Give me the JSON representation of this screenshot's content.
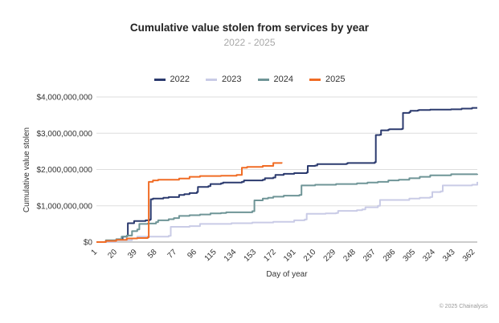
{
  "chart_data": {
    "type": "line",
    "title": "Cumulative value stolen from services by year",
    "subtitle": "2022 - 2025",
    "xlabel": "Day of year",
    "ylabel": "Cumulative value stolen",
    "xlim": [
      1,
      365
    ],
    "ylim": [
      0,
      4000000000
    ],
    "x_ticks": [
      "1",
      "20",
      "39",
      "58",
      "77",
      "96",
      "115",
      "134",
      "153",
      "172",
      "191",
      "210",
      "229",
      "248",
      "267",
      "286",
      "305",
      "324",
      "343",
      "362"
    ],
    "y_ticks": [
      "$0",
      "$1,000,000,000",
      "$2,000,000,000",
      "$3,000,000,000",
      "$4,000,000,000"
    ],
    "grid": true,
    "legend_position": "top",
    "series": [
      {
        "name": "2022",
        "color": "#2b3a6e",
        "x": [
          1,
          10,
          15,
          20,
          26,
          30,
          31,
          36,
          37,
          47,
          48,
          52,
          53,
          55,
          65,
          70,
          80,
          85,
          90,
          97,
          98,
          108,
          110,
          120,
          122,
          140,
          142,
          160,
          162,
          170,
          172,
          180,
          190,
          202,
          203,
          210,
          212,
          240,
          241,
          267,
          268,
          272,
          273,
          280,
          281,
          293,
          294,
          300,
          301,
          308,
          309,
          320,
          340,
          350,
          360,
          365
        ],
        "values": [
          0,
          10000000,
          40000000,
          60000000,
          150000000,
          170000000,
          520000000,
          520000000,
          580000000,
          580000000,
          600000000,
          620000000,
          1180000000,
          1200000000,
          1220000000,
          1240000000,
          1300000000,
          1320000000,
          1350000000,
          1380000000,
          1520000000,
          1540000000,
          1600000000,
          1620000000,
          1640000000,
          1660000000,
          1700000000,
          1720000000,
          1760000000,
          1780000000,
          1850000000,
          1880000000,
          1900000000,
          1920000000,
          2100000000,
          2110000000,
          2150000000,
          2160000000,
          2180000000,
          2200000000,
          2950000000,
          2960000000,
          3080000000,
          3100000000,
          3110000000,
          3120000000,
          3560000000,
          3580000000,
          3620000000,
          3630000000,
          3640000000,
          3650000000,
          3660000000,
          3680000000,
          3700000000,
          3700000000
        ]
      },
      {
        "name": "2023",
        "color": "#c9cbe6",
        "x": [
          1,
          20,
          35,
          40,
          60,
          70,
          72,
          90,
          100,
          130,
          150,
          170,
          190,
          200,
          202,
          220,
          230,
          232,
          250,
          255,
          258,
          270,
          272,
          300,
          310,
          320,
          322,
          330,
          332,
          360,
          365
        ],
        "values": [
          0,
          50000000,
          100000000,
          150000000,
          150000000,
          170000000,
          420000000,
          440000000,
          500000000,
          520000000,
          540000000,
          560000000,
          600000000,
          620000000,
          780000000,
          790000000,
          800000000,
          860000000,
          880000000,
          900000000,
          960000000,
          1000000000,
          1160000000,
          1200000000,
          1220000000,
          1240000000,
          1380000000,
          1400000000,
          1560000000,
          1580000000,
          1660000000
        ]
      },
      {
        "name": "2024",
        "color": "#6f9597",
        "x": [
          1,
          10,
          20,
          25,
          30,
          35,
          40,
          42,
          50,
          58,
          60,
          70,
          75,
          80,
          90,
          100,
          110,
          120,
          125,
          150,
          152,
          160,
          165,
          170,
          180,
          195,
          197,
          210,
          230,
          250,
          260,
          270,
          280,
          290,
          300,
          310,
          320,
          340,
          365
        ],
        "values": [
          0,
          50000000,
          80000000,
          150000000,
          180000000,
          300000000,
          350000000,
          500000000,
          510000000,
          550000000,
          600000000,
          630000000,
          660000000,
          720000000,
          740000000,
          760000000,
          790000000,
          800000000,
          820000000,
          850000000,
          1150000000,
          1200000000,
          1220000000,
          1250000000,
          1280000000,
          1300000000,
          1560000000,
          1580000000,
          1600000000,
          1620000000,
          1640000000,
          1660000000,
          1700000000,
          1720000000,
          1760000000,
          1800000000,
          1840000000,
          1870000000,
          1880000000
        ]
      },
      {
        "name": "2025",
        "color": "#f06c25",
        "x": [
          1,
          10,
          20,
          30,
          40,
          50,
          51,
          55,
          60,
          80,
          90,
          100,
          120,
          135,
          140,
          145,
          160,
          170,
          178
        ],
        "values": [
          0,
          30000000,
          60000000,
          100000000,
          110000000,
          130000000,
          1660000000,
          1700000000,
          1720000000,
          1750000000,
          1800000000,
          1820000000,
          1830000000,
          1850000000,
          2050000000,
          2070000000,
          2100000000,
          2180000000,
          2200000000
        ]
      }
    ]
  },
  "credit": "© 2025 Chainalysis"
}
